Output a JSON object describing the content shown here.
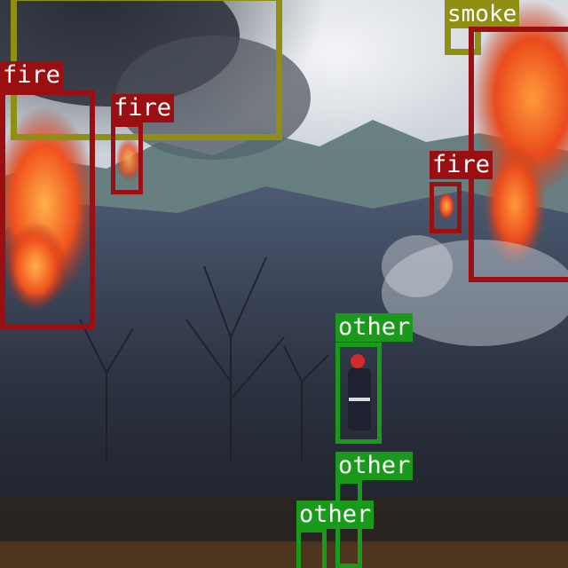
{
  "detections": [
    {
      "label": "fire"
    },
    {
      "label": "fire"
    },
    {
      "label": "smoke"
    },
    {
      "label": "fire"
    },
    {
      "label": "other"
    },
    {
      "label": "other"
    },
    {
      "label": "other"
    }
  ],
  "colors": {
    "fire": "#9a0f12",
    "smoke": "#8f8f12",
    "other": "#1a9a1a"
  }
}
